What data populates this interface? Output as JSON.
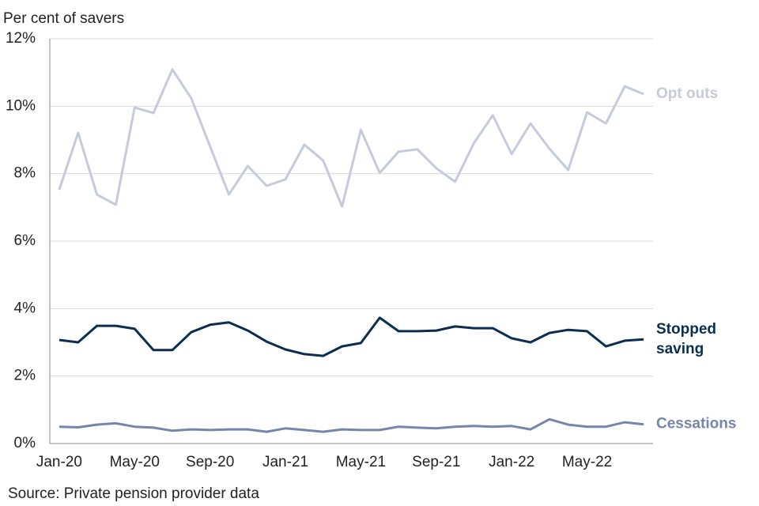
{
  "chart_data": {
    "type": "line",
    "y_label": "Per cent of savers",
    "source": "Source: Private pension provider data",
    "categories": [
      "Jan-20",
      null,
      null,
      null,
      "May-20",
      null,
      null,
      null,
      "Sep-20",
      null,
      null,
      null,
      "Jan-21",
      null,
      null,
      null,
      "May-21",
      null,
      null,
      null,
      "Sep-21",
      null,
      null,
      null,
      "Jan-22",
      null,
      null,
      null,
      "May-22",
      null,
      null,
      null
    ],
    "series": [
      {
        "name": "Opt outs",
        "color": "#c5cbd9",
        "values": [
          7.52,
          9.21,
          7.38,
          7.08,
          9.96,
          9.8,
          11.09,
          10.24,
          8.81,
          7.38,
          8.23,
          7.64,
          7.83,
          8.86,
          8.39,
          7.03,
          9.3,
          8.02,
          8.65,
          8.72,
          8.16,
          7.76,
          8.91,
          9.73,
          8.58,
          9.49,
          8.74,
          8.11,
          9.82,
          9.49,
          10.59,
          10.36
        ]
      },
      {
        "name": "Stopped saving",
        "color": "#0a2d50",
        "values": [
          3.07,
          3.0,
          3.49,
          3.49,
          3.4,
          2.77,
          2.77,
          3.3,
          3.52,
          3.59,
          3.35,
          3.02,
          2.79,
          2.65,
          2.6,
          2.88,
          2.98,
          3.73,
          3.33,
          3.33,
          3.35,
          3.47,
          3.42,
          3.42,
          3.12,
          3.0,
          3.28,
          3.37,
          3.33,
          2.88,
          3.05,
          3.09
        ]
      },
      {
        "name": "Cessations",
        "color": "#7585ab",
        "values": [
          0.5,
          0.48,
          0.56,
          0.6,
          0.5,
          0.47,
          0.38,
          0.42,
          0.4,
          0.42,
          0.42,
          0.35,
          0.45,
          0.4,
          0.35,
          0.42,
          0.4,
          0.4,
          0.5,
          0.47,
          0.45,
          0.5,
          0.52,
          0.5,
          0.52,
          0.42,
          0.72,
          0.56,
          0.5,
          0.5,
          0.63,
          0.57
        ]
      }
    ],
    "ylim": [
      0,
      12
    ],
    "yticks": [
      {
        "value": 0,
        "label": "0%"
      },
      {
        "value": 2,
        "label": "2%"
      },
      {
        "value": 4,
        "label": "4%"
      },
      {
        "value": 6,
        "label": "6%"
      },
      {
        "value": 8,
        "label": "8%"
      },
      {
        "value": 10,
        "label": "10%"
      },
      {
        "value": 12,
        "label": "12%"
      }
    ],
    "grid": true
  }
}
